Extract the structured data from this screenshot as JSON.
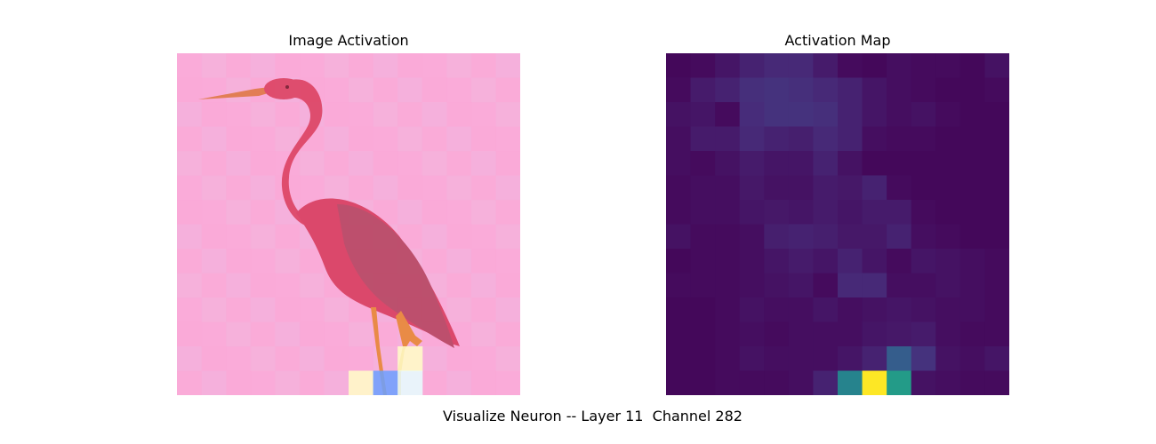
{
  "figure": {
    "left_title": "Image Activation",
    "right_title": "Activation Map",
    "suptitle": "Visualize Neuron -- Layer 11  Channel 282"
  },
  "colors": {
    "overlay_base": "#f9aedb",
    "bird_body": "#e0435f",
    "bird_wing": "#c04a66",
    "bird_legs": "#e8883a",
    "viridis_low": "#440154",
    "viridis_high": "#fde725"
  },
  "chart_data": {
    "type": "heatmap",
    "rows": 14,
    "cols": 14,
    "colormap": "viridis",
    "vmin": 0,
    "vmax": 1,
    "values": [
      [
        0.02,
        0.03,
        0.06,
        0.1,
        0.12,
        0.12,
        0.08,
        0.03,
        0.02,
        0.04,
        0.03,
        0.03,
        0.02,
        0.05
      ],
      [
        0.03,
        0.08,
        0.1,
        0.14,
        0.15,
        0.14,
        0.12,
        0.1,
        0.06,
        0.04,
        0.03,
        0.02,
        0.02,
        0.03
      ],
      [
        0.05,
        0.06,
        0.03,
        0.13,
        0.15,
        0.15,
        0.14,
        0.1,
        0.06,
        0.04,
        0.05,
        0.03,
        0.02,
        0.02
      ],
      [
        0.04,
        0.08,
        0.08,
        0.12,
        0.1,
        0.09,
        0.12,
        0.1,
        0.04,
        0.03,
        0.03,
        0.02,
        0.02,
        0.02
      ],
      [
        0.04,
        0.03,
        0.05,
        0.08,
        0.06,
        0.06,
        0.1,
        0.05,
        0.02,
        0.02,
        0.02,
        0.02,
        0.02,
        0.02
      ],
      [
        0.03,
        0.04,
        0.04,
        0.07,
        0.05,
        0.05,
        0.08,
        0.07,
        0.1,
        0.03,
        0.02,
        0.02,
        0.02,
        0.02
      ],
      [
        0.03,
        0.04,
        0.04,
        0.06,
        0.07,
        0.06,
        0.08,
        0.06,
        0.08,
        0.08,
        0.03,
        0.02,
        0.02,
        0.02
      ],
      [
        0.05,
        0.03,
        0.03,
        0.04,
        0.09,
        0.1,
        0.09,
        0.07,
        0.07,
        0.1,
        0.04,
        0.03,
        0.02,
        0.02
      ],
      [
        0.02,
        0.03,
        0.03,
        0.04,
        0.06,
        0.08,
        0.06,
        0.1,
        0.06,
        0.03,
        0.06,
        0.05,
        0.04,
        0.03
      ],
      [
        0.03,
        0.03,
        0.03,
        0.04,
        0.05,
        0.06,
        0.03,
        0.12,
        0.12,
        0.04,
        0.04,
        0.05,
        0.04,
        0.03
      ],
      [
        0.02,
        0.02,
        0.03,
        0.05,
        0.04,
        0.04,
        0.06,
        0.04,
        0.05,
        0.06,
        0.05,
        0.04,
        0.04,
        0.03
      ],
      [
        0.02,
        0.02,
        0.03,
        0.04,
        0.03,
        0.04,
        0.04,
        0.04,
        0.06,
        0.07,
        0.08,
        0.04,
        0.03,
        0.03
      ],
      [
        0.02,
        0.02,
        0.03,
        0.05,
        0.04,
        0.04,
        0.04,
        0.06,
        0.1,
        0.3,
        0.15,
        0.05,
        0.04,
        0.06
      ],
      [
        0.02,
        0.02,
        0.03,
        0.03,
        0.03,
        0.04,
        0.1,
        0.45,
        1.0,
        0.55,
        0.05,
        0.04,
        0.03,
        0.03
      ]
    ]
  }
}
